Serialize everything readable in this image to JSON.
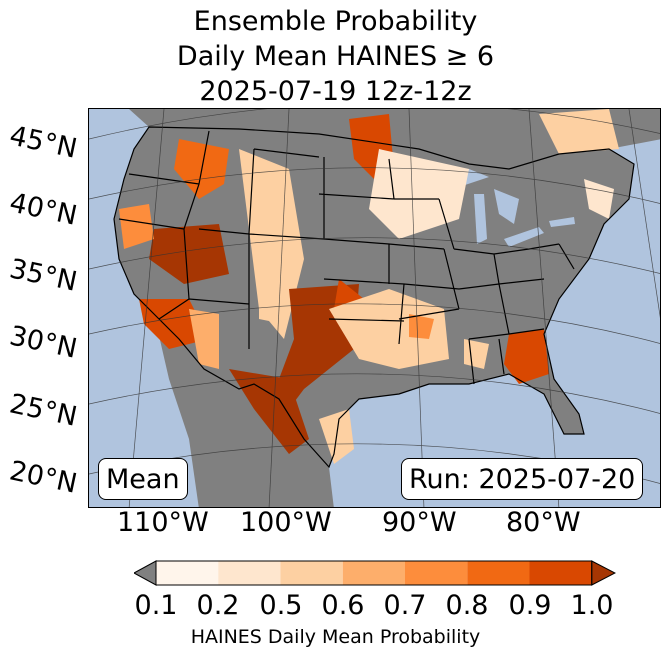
{
  "title": {
    "line1": "Ensemble Probability",
    "line2": "Daily Mean HAINES ≥ 6",
    "line3": "2025-07-19 12z-12z"
  },
  "lat_labels": [
    "45°N",
    "40°N",
    "35°N",
    "30°N",
    "25°N",
    "20°N"
  ],
  "lon_labels": [
    "110°W",
    "100°W",
    "90°W",
    "80°W"
  ],
  "left_box": "Mean",
  "right_box": "Run: 2025-07-20",
  "colorbar": {
    "ticks": [
      "0.1",
      "0.2",
      "0.5",
      "0.6",
      "0.7",
      "0.8",
      "0.9",
      "1.0"
    ],
    "colors": [
      "#fff5eb",
      "#fee6ce",
      "#fdd0a2",
      "#fdae6b",
      "#fd8d3c",
      "#f16913",
      "#d94801",
      "#a63603"
    ],
    "under_color": "#808080",
    "label": "HAINES Daily Mean Probability"
  },
  "map_colors": {
    "ocean": "#b0c4de",
    "land": "#808080",
    "border": "#000000"
  }
}
